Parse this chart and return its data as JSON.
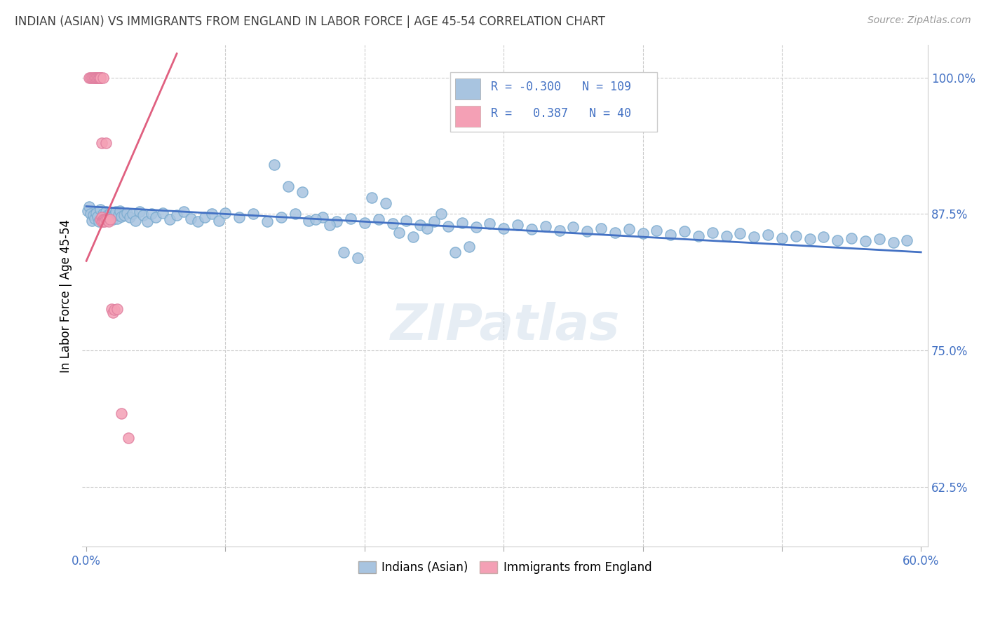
{
  "title": "INDIAN (ASIAN) VS IMMIGRANTS FROM ENGLAND IN LABOR FORCE | AGE 45-54 CORRELATION CHART",
  "source": "Source: ZipAtlas.com",
  "ylabel": "In Labor Force | Age 45-54",
  "blue_color": "#a8c4e0",
  "pink_color": "#f4a0b5",
  "blue_line_color": "#4472c4",
  "pink_line_color": "#e06080",
  "title_color": "#404040",
  "label_color": "#4472c4",
  "legend_R1": "-0.300",
  "legend_N1": "109",
  "legend_R2": "0.387",
  "legend_N2": "40",
  "xlim": [
    0.0,
    0.6
  ],
  "ylim": [
    0.57,
    1.03
  ],
  "blue_x": [
    0.001,
    0.002,
    0.003,
    0.004,
    0.005,
    0.006,
    0.007,
    0.008,
    0.009,
    0.01,
    0.011,
    0.012,
    0.013,
    0.014,
    0.015,
    0.016,
    0.017,
    0.018,
    0.019,
    0.02,
    0.021,
    0.022,
    0.023,
    0.024,
    0.025,
    0.027,
    0.029,
    0.031,
    0.033,
    0.035,
    0.038,
    0.041,
    0.044,
    0.047,
    0.05,
    0.055,
    0.06,
    0.065,
    0.07,
    0.075,
    0.08,
    0.085,
    0.09,
    0.095,
    0.1,
    0.11,
    0.12,
    0.13,
    0.14,
    0.15,
    0.16,
    0.17,
    0.18,
    0.19,
    0.2,
    0.21,
    0.22,
    0.23,
    0.24,
    0.25,
    0.26,
    0.27,
    0.28,
    0.29,
    0.3,
    0.31,
    0.32,
    0.33,
    0.34,
    0.35,
    0.36,
    0.37,
    0.38,
    0.39,
    0.4,
    0.41,
    0.42,
    0.43,
    0.44,
    0.45,
    0.46,
    0.47,
    0.48,
    0.49,
    0.5,
    0.51,
    0.52,
    0.53,
    0.54,
    0.55,
    0.56,
    0.57,
    0.58,
    0.59,
    0.135,
    0.145,
    0.155,
    0.165,
    0.175,
    0.185,
    0.195,
    0.205,
    0.215,
    0.225,
    0.235,
    0.245,
    0.255,
    0.265,
    0.275
  ],
  "blue_y": [
    0.878,
    0.882,
    0.875,
    0.869,
    0.874,
    0.871,
    0.876,
    0.873,
    0.868,
    0.879,
    0.872,
    0.875,
    0.87,
    0.877,
    0.874,
    0.871,
    0.876,
    0.873,
    0.87,
    0.874,
    0.877,
    0.871,
    0.874,
    0.878,
    0.873,
    0.874,
    0.876,
    0.872,
    0.875,
    0.869,
    0.877,
    0.874,
    0.868,
    0.875,
    0.872,
    0.876,
    0.87,
    0.874,
    0.877,
    0.871,
    0.868,
    0.872,
    0.875,
    0.869,
    0.876,
    0.872,
    0.875,
    0.868,
    0.872,
    0.875,
    0.869,
    0.872,
    0.868,
    0.871,
    0.867,
    0.87,
    0.866,
    0.869,
    0.865,
    0.868,
    0.864,
    0.867,
    0.863,
    0.866,
    0.862,
    0.865,
    0.861,
    0.864,
    0.86,
    0.863,
    0.859,
    0.862,
    0.858,
    0.861,
    0.857,
    0.86,
    0.856,
    0.859,
    0.855,
    0.858,
    0.855,
    0.857,
    0.854,
    0.856,
    0.853,
    0.855,
    0.852,
    0.854,
    0.851,
    0.853,
    0.85,
    0.852,
    0.849,
    0.851,
    0.92,
    0.9,
    0.895,
    0.87,
    0.865,
    0.84,
    0.835,
    0.89,
    0.885,
    0.858,
    0.854,
    0.862,
    0.875,
    0.84,
    0.845
  ],
  "pink_x": [
    0.002,
    0.003,
    0.004,
    0.005,
    0.006,
    0.006,
    0.007,
    0.007,
    0.008,
    0.008,
    0.009,
    0.009,
    0.01,
    0.01,
    0.01,
    0.01,
    0.01,
    0.01,
    0.01,
    0.01,
    0.01,
    0.011,
    0.011,
    0.011,
    0.012,
    0.012,
    0.012,
    0.013,
    0.013,
    0.014,
    0.014,
    0.015,
    0.016,
    0.017,
    0.018,
    0.019,
    0.02,
    0.022,
    0.025,
    0.03
  ],
  "pink_y": [
    1.0,
    1.0,
    1.0,
    1.0,
    1.0,
    1.0,
    1.0,
    1.0,
    1.0,
    1.0,
    1.0,
    1.0,
    1.0,
    1.0,
    1.0,
    1.0,
    1.0,
    1.0,
    1.0,
    1.0,
    0.87,
    0.872,
    0.868,
    0.94,
    0.87,
    0.868,
    1.0,
    0.87,
    0.868,
    0.87,
    0.94,
    0.87,
    0.868,
    0.87,
    0.788,
    0.785,
    0.787,
    0.788,
    0.692,
    0.67
  ],
  "pink_line_x0": 0.0,
  "pink_line_x1": 0.065,
  "pink_line_y0": 0.832,
  "pink_line_y1": 1.022,
  "blue_line_x0": 0.0,
  "blue_line_x1": 0.6,
  "blue_line_y0": 0.882,
  "blue_line_y1": 0.84
}
